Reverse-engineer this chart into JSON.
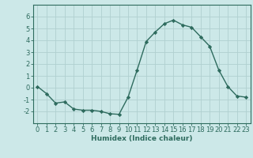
{
  "x": [
    0,
    1,
    2,
    3,
    4,
    5,
    6,
    7,
    8,
    9,
    10,
    11,
    12,
    13,
    14,
    15,
    16,
    17,
    18,
    19,
    20,
    21,
    22,
    23
  ],
  "y": [
    0.1,
    -0.5,
    -1.3,
    -1.2,
    -1.8,
    -1.9,
    -1.9,
    -2.0,
    -2.2,
    -2.25,
    -0.8,
    1.5,
    3.9,
    4.7,
    5.4,
    5.7,
    5.3,
    5.1,
    4.3,
    3.5,
    1.5,
    0.1,
    -0.7,
    -0.8
  ],
  "line_color": "#2e6b5e",
  "marker": "D",
  "markersize": 2.2,
  "linewidth": 1.0,
  "bg_color": "#cce8e8",
  "grid_color": "#b0d0d0",
  "xlabel": "Humidex (Indice chaleur)",
  "xlabel_fontsize": 6.5,
  "ylim": [
    -3,
    7
  ],
  "xlim": [
    -0.5,
    23.5
  ],
  "yticks": [
    -2,
    -1,
    0,
    1,
    2,
    3,
    4,
    5,
    6
  ],
  "xticks": [
    0,
    1,
    2,
    3,
    4,
    5,
    6,
    7,
    8,
    9,
    10,
    11,
    12,
    13,
    14,
    15,
    16,
    17,
    18,
    19,
    20,
    21,
    22,
    23
  ],
  "tick_fontsize": 6.0,
  "axis_color": "#2e6b5e"
}
